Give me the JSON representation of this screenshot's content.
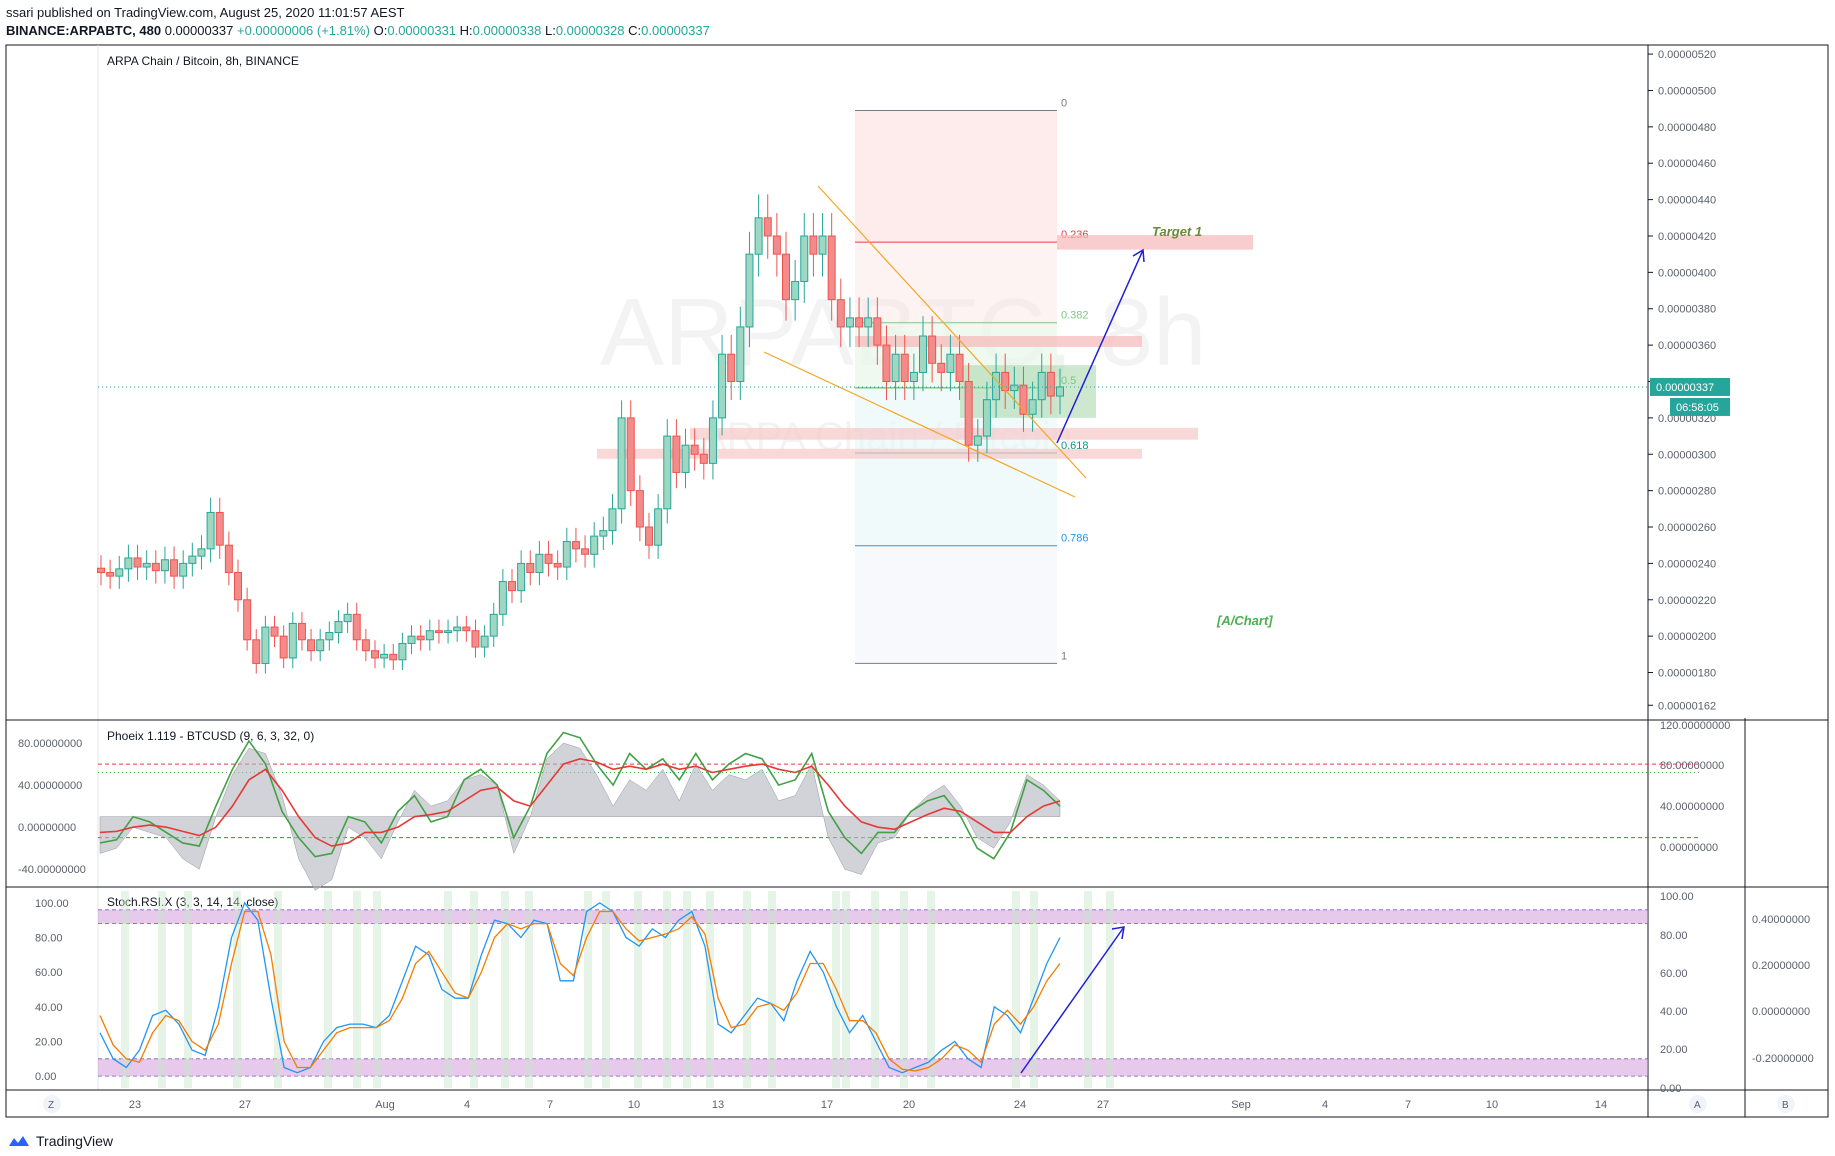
{
  "header": {
    "published": "ssari published on TradingView.com, August 25, 2020 11:01:57 AEST",
    "symbol": "BINANCE:ARPABTC, 480",
    "price": "0.00000337",
    "change": "+0.00000006 (+1.81%)",
    "o_label": "O:",
    "o_value": "0.00000331",
    "h_label": "H:",
    "h_value": "0.00000338",
    "l_label": "L:",
    "l_value": "0.00000328",
    "c_label": "C:",
    "c_value": "0.00000337"
  },
  "footer": {
    "brand": "TradingView"
  },
  "colors": {
    "up": "#26a69a",
    "down": "#ef5350",
    "upBody": "#9fd8c2",
    "downBody": "#f28c8a",
    "orange": "#f5a623",
    "blue": "#1f1fd6",
    "grid": "#f0f3fa",
    "axis": "#5d606b"
  },
  "chart_data": [
    {
      "type": "candlestick",
      "title": "ARPA Chain / Bitcoin, 8h, BINANCE",
      "watermark": "ARPABTC, 8h",
      "watermark2": "ARPA Chain / Bitcoin",
      "y_ticks": [
        "0.00000520",
        "0.00000500",
        "0.00000480",
        "0.00000460",
        "0.00000440",
        "0.00000420",
        "0.00000400",
        "0.00000380",
        "0.00000360",
        "0.00000340",
        "0.00000320",
        "0.00000300",
        "0.00000280",
        "0.00000260",
        "0.00000240",
        "0.00000220",
        "0.00000200",
        "0.00000180",
        "0.00000162"
      ],
      "y_range": [
        1.55e-06,
        5.25e-06
      ],
      "x_ticks": [
        "23",
        "27",
        "Aug",
        "4",
        "7",
        "10",
        "13",
        "17",
        "20",
        "24",
        "27",
        "Sep",
        "4",
        "7",
        "10",
        "14"
      ],
      "last_price": "0.00000337",
      "countdown": "06:58:05",
      "fib_levels": [
        {
          "label": "0",
          "value": 4.89e-06
        },
        {
          "label": "0.236",
          "value": 4.166e-06
        },
        {
          "label": "0.382",
          "value": 3.723e-06
        },
        {
          "label": "0.5",
          "value": 3.365e-06
        },
        {
          "label": "0.618",
          "value": 3.007e-06
        },
        {
          "label": "0.786",
          "value": 2.497e-06
        },
        {
          "label": "1",
          "value": 1.85e-06
        }
      ],
      "annotations": [
        "Target 1",
        "[A/Chart]"
      ],
      "closes": [
        2.35e-06,
        2.33e-06,
        2.37e-06,
        2.43e-06,
        2.38e-06,
        2.4e-06,
        2.36e-06,
        2.42e-06,
        2.33e-06,
        2.4e-06,
        2.44e-06,
        2.48e-06,
        2.68e-06,
        2.5e-06,
        2.35e-06,
        2.2e-06,
        1.98e-06,
        1.85e-06,
        2.05e-06,
        2e-06,
        1.88e-06,
        2.07e-06,
        1.98e-06,
        1.92e-06,
        1.98e-06,
        2.02e-06,
        2.08e-06,
        2.12e-06,
        1.98e-06,
        1.92e-06,
        1.88e-06,
        1.9e-06,
        1.87e-06,
        1.96e-06,
        2e-06,
        1.98e-06,
        2.03e-06,
        2.02e-06,
        2.03e-06,
        2.05e-06,
        2.03e-06,
        1.94e-06,
        2e-06,
        2.12e-06,
        2.3e-06,
        2.25e-06,
        2.4e-06,
        2.35e-06,
        2.45e-06,
        2.4e-06,
        2.38e-06,
        2.52e-06,
        2.48e-06,
        2.45e-06,
        2.55e-06,
        2.58e-06,
        2.7e-06,
        3.2e-06,
        2.8e-06,
        2.6e-06,
        2.5e-06,
        2.7e-06,
        3.1e-06,
        2.9e-06,
        3.05e-06,
        3e-06,
        2.95e-06,
        3.2e-06,
        3.55e-06,
        3.4e-06,
        3.7e-06,
        4.1e-06,
        4.3e-06,
        4.2e-06,
        4.1e-06,
        3.85e-06,
        3.95e-06,
        4.2e-06,
        4.1e-06,
        4.2e-06,
        3.85e-06,
        3.7e-06,
        3.75e-06,
        3.7e-06,
        3.75e-06,
        3.6e-06,
        3.4e-06,
        3.55e-06,
        3.4e-06,
        3.45e-06,
        3.65e-06,
        3.5e-06,
        3.45e-06,
        3.55e-06,
        3.4e-06,
        3.05e-06,
        3.1e-06,
        3.3e-06,
        3.45e-06,
        3.35e-06,
        3.38e-06,
        3.22e-06,
        3.3e-06,
        3.45e-06,
        3.32e-06,
        3.37e-06
      ]
    },
    {
      "type": "line",
      "title": "Phoeix 1.119 - BTCUSD (9, 6, 3, 32, 0)",
      "y_ticks_left": [
        "80.00000000",
        "40.00000000",
        "0.00000000",
        "-40.00000000"
      ],
      "y_ticks_right": [
        "120.00000000",
        "80.00000000",
        "40.00000000",
        "0.00000000"
      ],
      "series": [
        {
          "name": "",
          "values": [
            -15,
            -12,
            10,
            5,
            -5,
            -15,
            -18,
            20,
            55,
            82,
            60,
            15,
            -10,
            -28,
            -25,
            10,
            5,
            -15,
            15,
            30,
            5,
            10,
            45,
            55,
            40,
            -10,
            20,
            70,
            90,
            85,
            60,
            40,
            70,
            55,
            65,
            45,
            70,
            45,
            60,
            70,
            65,
            40,
            45,
            70,
            15,
            -10,
            -25,
            -5,
            -5,
            15,
            25,
            30,
            10,
            -20,
            -30,
            -5,
            45,
            35,
            20
          ]
        },
        {
          "name": "",
          "values": [
            -5,
            -4,
            0,
            2,
            0,
            -4,
            -8,
            0,
            20,
            45,
            55,
            35,
            10,
            -10,
            -18,
            -15,
            -5,
            -5,
            0,
            10,
            12,
            15,
            25,
            35,
            38,
            25,
            20,
            40,
            60,
            65,
            62,
            55,
            58,
            55,
            60,
            55,
            58,
            52,
            55,
            58,
            60,
            55,
            52,
            58,
            40,
            20,
            5,
            0,
            -2,
            5,
            12,
            18,
            15,
            5,
            -5,
            -5,
            10,
            20,
            25
          ]
        },
        {
          "name": "",
          "values": [
            -25,
            -20,
            0,
            -5,
            -10,
            -30,
            -40,
            10,
            50,
            75,
            70,
            30,
            -30,
            -60,
            -50,
            0,
            -10,
            -30,
            5,
            35,
            20,
            25,
            45,
            50,
            40,
            -25,
            10,
            65,
            80,
            75,
            50,
            20,
            45,
            35,
            55,
            25,
            60,
            35,
            50,
            45,
            55,
            25,
            30,
            60,
            -10,
            -40,
            -45,
            -15,
            -10,
            15,
            30,
            40,
            20,
            -10,
            -20,
            5,
            50,
            40,
            25
          ]
        }
      ],
      "levels": [
        60,
        15,
        -15
      ]
    },
    {
      "type": "line",
      "title": "Stoch.RSI.X (3, 3, 14, 14, close)",
      "y_ticks_left": [
        "100.00",
        "80.00",
        "60.00",
        "40.00",
        "20.00",
        "0.00"
      ],
      "y_ticks_mid": [
        "100.00",
        "80.00",
        "60.00",
        "40.00",
        "20.00",
        "0.00"
      ],
      "y_ticks_right": [
        "0.40000000",
        "0.20000000",
        "0.00000000",
        "-0.20000000"
      ],
      "series": [
        {
          "name": "",
          "values": [
            25,
            10,
            5,
            15,
            35,
            38,
            30,
            15,
            12,
            40,
            80,
            100,
            90,
            45,
            5,
            2,
            5,
            20,
            28,
            30,
            30,
            28,
            35,
            55,
            75,
            70,
            50,
            45,
            45,
            70,
            90,
            88,
            80,
            90,
            88,
            55,
            55,
            95,
            100,
            95,
            80,
            75,
            85,
            80,
            90,
            95,
            75,
            30,
            25,
            35,
            45,
            42,
            32,
            55,
            72,
            60,
            40,
            25,
            35,
            20,
            5,
            2,
            5,
            8,
            15,
            20,
            10,
            5,
            40,
            35,
            25,
            45,
            65,
            80
          ]
        },
        {
          "name": "",
          "values": [
            35,
            18,
            10,
            8,
            25,
            35,
            32,
            20,
            15,
            30,
            65,
            95,
            95,
            70,
            20,
            5,
            5,
            15,
            25,
            28,
            28,
            28,
            32,
            45,
            65,
            72,
            60,
            48,
            45,
            60,
            80,
            88,
            85,
            88,
            88,
            65,
            58,
            80,
            95,
            95,
            85,
            78,
            80,
            82,
            85,
            92,
            82,
            45,
            28,
            30,
            40,
            42,
            38,
            48,
            65,
            65,
            50,
            32,
            32,
            25,
            10,
            4,
            3,
            5,
            10,
            18,
            15,
            8,
            30,
            38,
            30,
            40,
            55,
            65
          ]
        }
      ]
    }
  ]
}
